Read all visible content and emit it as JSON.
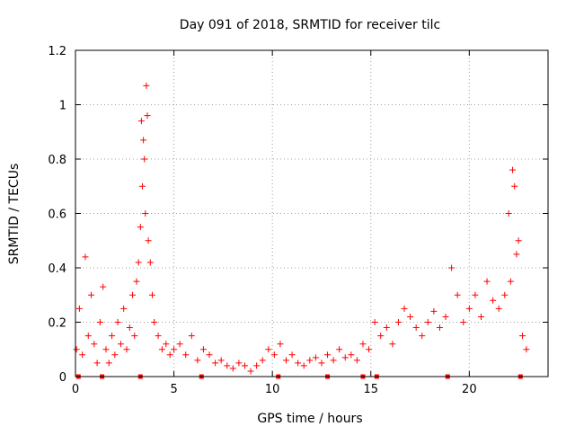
{
  "chart_data": {
    "type": "scatter",
    "title": "Day 091 of 2018, SRMTID for receiver tilc",
    "xlabel": "GPS time / hours",
    "ylabel": "SRMTID / TECUs",
    "xlim": [
      0,
      24
    ],
    "ylim": [
      0,
      1.2
    ],
    "x_ticks": [
      0,
      5,
      10,
      15,
      20
    ],
    "x_tick_labels": [
      "0",
      "5",
      "10",
      "15",
      "20"
    ],
    "y_ticks": [
      0,
      0.2,
      0.4,
      0.6,
      0.8,
      1.0,
      1.2
    ],
    "y_tick_labels": [
      "0",
      "0.2",
      "0.4",
      "0.6",
      "0.8",
      "1",
      "1.2"
    ],
    "grid": true,
    "colors": {
      "series": "#ff0000",
      "grid": "#a0a0a0",
      "axis": "#000000"
    },
    "series": [
      {
        "name": "SRMTID",
        "marker": "plus",
        "x": [
          0.05,
          0.2,
          0.35,
          0.5,
          0.65,
          0.8,
          0.95,
          1.1,
          1.25,
          1.4,
          1.55,
          1.7,
          1.85,
          2.0,
          2.15,
          2.3,
          2.45,
          2.6,
          2.75,
          2.9,
          3.0,
          3.1,
          3.2,
          3.3,
          3.35,
          3.4,
          3.45,
          3.5,
          3.55,
          3.6,
          3.65,
          3.7,
          3.8,
          3.9,
          4.0,
          4.2,
          4.4,
          4.6,
          4.8,
          5.0,
          5.3,
          5.6,
          5.9,
          6.2,
          6.5,
          6.8,
          7.1,
          7.4,
          7.7,
          8.0,
          8.3,
          8.6,
          8.9,
          9.2,
          9.5,
          9.8,
          10.1,
          10.4,
          10.7,
          11.0,
          11.3,
          11.6,
          11.9,
          12.2,
          12.5,
          12.8,
          13.1,
          13.4,
          13.7,
          14.0,
          14.3,
          14.6,
          14.9,
          15.2,
          15.5,
          15.8,
          16.1,
          16.4,
          16.7,
          17.0,
          17.3,
          17.6,
          17.9,
          18.2,
          18.5,
          18.8,
          19.1,
          19.4,
          19.7,
          20.0,
          20.3,
          20.6,
          20.9,
          21.2,
          21.5,
          21.8,
          22.0,
          22.1,
          22.2,
          22.3,
          22.4,
          22.5,
          22.7,
          22.9
        ],
        "y": [
          0.1,
          0.25,
          0.08,
          0.44,
          0.15,
          0.3,
          0.12,
          0.05,
          0.2,
          0.33,
          0.1,
          0.05,
          0.15,
          0.08,
          0.2,
          0.12,
          0.25,
          0.1,
          0.18,
          0.3,
          0.15,
          0.35,
          0.42,
          0.55,
          0.94,
          0.7,
          0.87,
          0.8,
          0.6,
          1.07,
          0.96,
          0.5,
          0.42,
          0.3,
          0.2,
          0.15,
          0.1,
          0.12,
          0.08,
          0.1,
          0.12,
          0.08,
          0.15,
          0.06,
          0.1,
          0.08,
          0.05,
          0.06,
          0.04,
          0.03,
          0.05,
          0.04,
          0.02,
          0.04,
          0.06,
          0.1,
          0.08,
          0.12,
          0.06,
          0.08,
          0.05,
          0.04,
          0.06,
          0.07,
          0.05,
          0.08,
          0.06,
          0.1,
          0.07,
          0.08,
          0.06,
          0.12,
          0.1,
          0.2,
          0.15,
          0.18,
          0.12,
          0.2,
          0.25,
          0.22,
          0.18,
          0.15,
          0.2,
          0.24,
          0.18,
          0.22,
          0.4,
          0.3,
          0.2,
          0.25,
          0.3,
          0.22,
          0.35,
          0.28,
          0.25,
          0.3,
          0.6,
          0.35,
          0.76,
          0.7,
          0.45,
          0.5,
          0.15,
          0.1
        ]
      }
    ],
    "bottom_markers_x": [
      0.15,
      1.35,
      3.3,
      6.4,
      10.3,
      12.8,
      14.6,
      15.3,
      18.9,
      22.6
    ]
  }
}
